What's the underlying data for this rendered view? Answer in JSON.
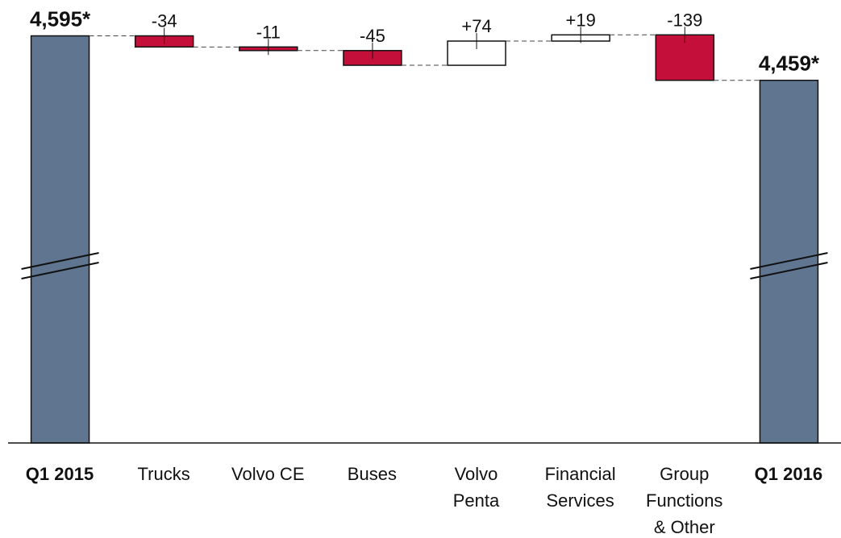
{
  "chart_data": {
    "type": "waterfall",
    "categories": [
      [
        "Q1 2015"
      ],
      [
        "Trucks"
      ],
      [
        "Volvo CE"
      ],
      [
        "Buses"
      ],
      [
        "Volvo",
        "Penta"
      ],
      [
        "Financial",
        "Services"
      ],
      [
        "Group",
        "Functions",
        "& Other"
      ],
      [
        "Q1 2016"
      ]
    ],
    "measure": [
      "absolute",
      "relative",
      "relative",
      "relative",
      "relative",
      "relative",
      "relative",
      "absolute"
    ],
    "values": [
      4595,
      -34,
      -11,
      -45,
      74,
      19,
      -139,
      4459
    ],
    "value_labels": [
      "4,595*",
      "-34",
      "-11",
      "-45",
      "+74",
      "+19",
      "-139",
      "4,459*"
    ],
    "colors": {
      "total": "#5f7590",
      "decrease": "#c40f3a",
      "increase": "#ffffff"
    },
    "ylim": [
      3350,
      4680
    ]
  }
}
